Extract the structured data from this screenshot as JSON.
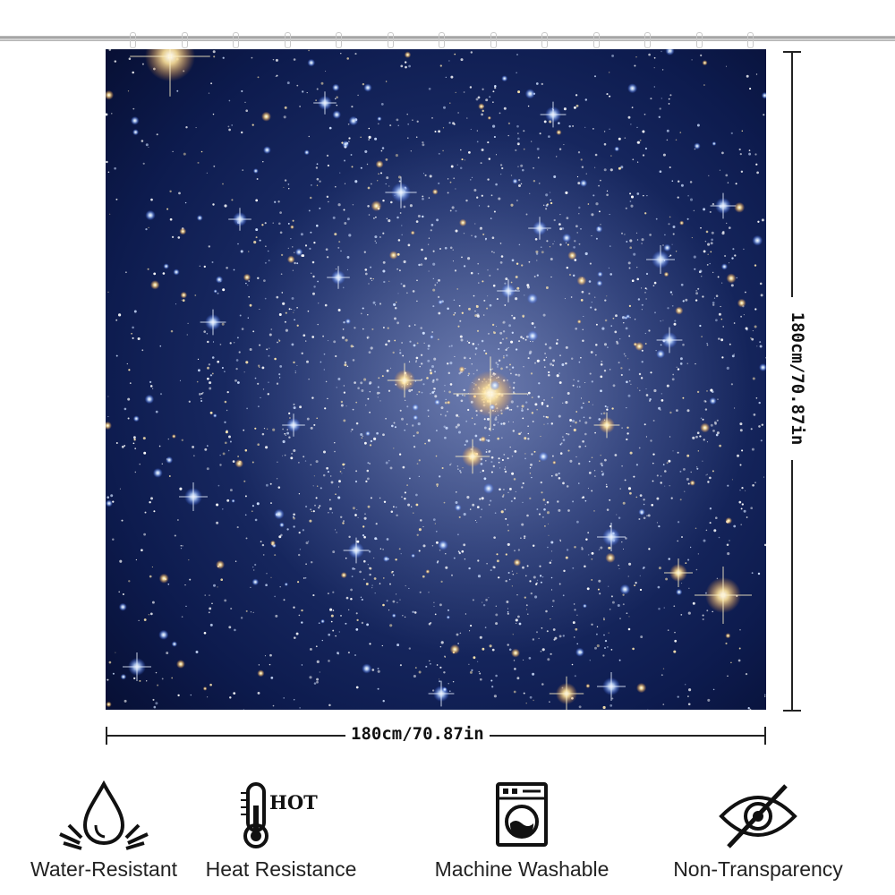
{
  "product": {
    "width_label": "180cm/70.87in",
    "height_label": "180cm/70.87in"
  },
  "features": [
    {
      "label": "Water-Resistant",
      "icon": "water-drop-icon"
    },
    {
      "label": "Heat Resistance",
      "icon": "thermometer-hot-icon",
      "badge": "HOT"
    },
    {
      "label": "Machine Washable",
      "icon": "washing-machine-icon"
    },
    {
      "label": "Non-Transparency",
      "icon": "eye-slash-icon"
    }
  ],
  "colors": {
    "curtain_background": "#0b1845",
    "star_warm": "#ffe7a6",
    "star_cool": "#9fc4ff"
  }
}
